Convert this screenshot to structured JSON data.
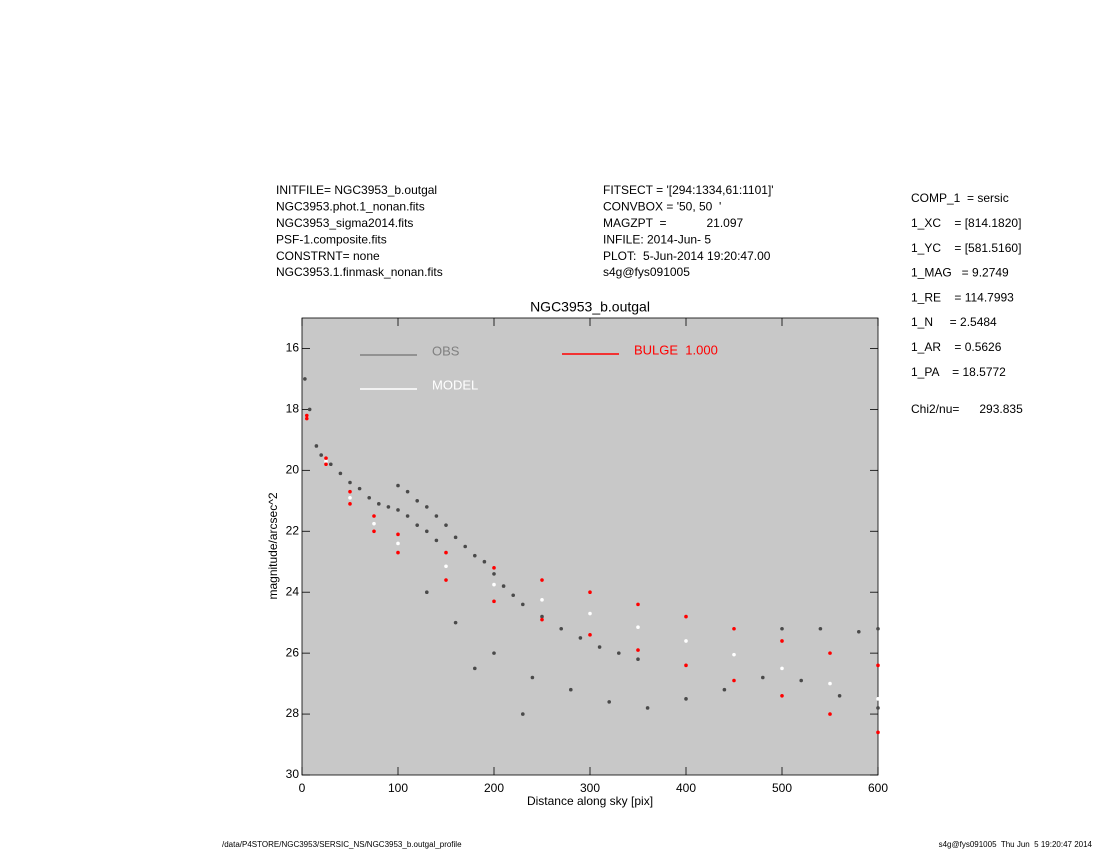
{
  "header": {
    "left": [
      "INITFILE= NGC3953_b.outgal",
      "NGC3953.phot.1_nonan.fits",
      "NGC3953_sigma2014.fits",
      "PSF-1.composite.fits",
      "CONSTRNT= none",
      "NGC3953.1.finmask_nonan.fits"
    ],
    "middle": [
      "FITSECT = '[294:1334,61:1101]'",
      "CONVBOX = '50, 50  '",
      "MAGZPT  =            21.097",
      "INFILE: 2014-Jun- 5",
      "PLOT:  5-Jun-2014 19:20:47.00",
      "s4g@fys091005"
    ],
    "right": [
      "COMP_1  = sersic",
      "1_XC    = [814.1820]",
      "1_YC    = [581.5160]",
      "1_MAG   = 9.2749",
      "1_RE    = 114.7993",
      "1_N     = 2.5484",
      "1_AR    = 0.5626",
      "1_PA    = 18.5772"
    ],
    "chi2": "Chi2/nu=      293.835"
  },
  "footer": {
    "left": "/data/P4STORE/NGC3953/SERSIC_NS/NGC3953_b.outgal_profile",
    "right": "s4g@fys091005  Thu Jun  5 19:20:47 2014"
  },
  "chart_data": {
    "type": "scatter",
    "title": "NGC3953_b.outgal",
    "x_label": "Distance along sky [pix]",
    "y_label": "magnitude/arcsec^2",
    "xlim": [
      0,
      600
    ],
    "ylim": [
      30,
      15
    ],
    "xticks": [
      0,
      100,
      200,
      300,
      400,
      500,
      600
    ],
    "yticks": [
      16,
      18,
      20,
      22,
      24,
      26,
      28,
      30
    ],
    "background": "#c8c8c8",
    "series": [
      {
        "name": "OBS",
        "color": "#4a4a4a",
        "legend_color": "#808080",
        "x": [
          3,
          8,
          15,
          20,
          30,
          40,
          50,
          60,
          70,
          80,
          90,
          100,
          110,
          120,
          130,
          140,
          100,
          110,
          120,
          130,
          140,
          150,
          160,
          170,
          180,
          190,
          200,
          210,
          220,
          230,
          250,
          270,
          290,
          310,
          330,
          350,
          160,
          200,
          240,
          280,
          320,
          360,
          400,
          440,
          480,
          520,
          560,
          600,
          500,
          540,
          580,
          600,
          130,
          180,
          230
        ],
        "values": [
          17,
          18,
          19.2,
          19.5,
          19.8,
          20.1,
          20.4,
          20.6,
          20.9,
          21.1,
          21.2,
          21.3,
          21.5,
          21.8,
          22,
          22.3,
          20.5,
          20.7,
          21,
          21.2,
          21.5,
          21.8,
          22.2,
          22.5,
          22.8,
          23,
          23.4,
          23.8,
          24.1,
          24.4,
          24.8,
          25.2,
          25.5,
          25.8,
          26,
          26.2,
          25,
          26,
          26.8,
          27.2,
          27.6,
          27.8,
          27.5,
          27.2,
          26.8,
          26.9,
          27.4,
          27.8,
          25.2,
          25.2,
          25.3,
          25.2,
          24,
          26.5,
          28
        ]
      },
      {
        "name": "MODEL",
        "color": "#ffffff",
        "x": [
          5,
          25,
          50,
          75,
          100,
          150,
          200,
          250,
          300,
          350,
          400,
          450,
          500,
          550,
          600
        ],
        "values": [
          18.25,
          19.7,
          20.9,
          21.75,
          22.4,
          23.15,
          23.75,
          24.25,
          24.7,
          25.15,
          25.6,
          26.05,
          26.5,
          27,
          27.5
        ]
      },
      {
        "name": "BULGE  1.000",
        "color": "#ff0000",
        "x": [
          5,
          25,
          50,
          75,
          100,
          150,
          200,
          250,
          300,
          350,
          400,
          450,
          500,
          550,
          600,
          5,
          25,
          50,
          75,
          100,
          150,
          200,
          250,
          300,
          350,
          400,
          450,
          500,
          550,
          600
        ],
        "values": [
          18.2,
          19.6,
          20.7,
          21.5,
          22.1,
          22.7,
          23.2,
          23.6,
          24,
          24.4,
          24.8,
          25.2,
          25.6,
          26,
          26.4,
          18.3,
          19.8,
          21.1,
          22,
          22.7,
          23.6,
          24.3,
          24.9,
          25.4,
          25.9,
          26.4,
          26.9,
          27.4,
          28,
          28.6
        ]
      }
    ]
  }
}
